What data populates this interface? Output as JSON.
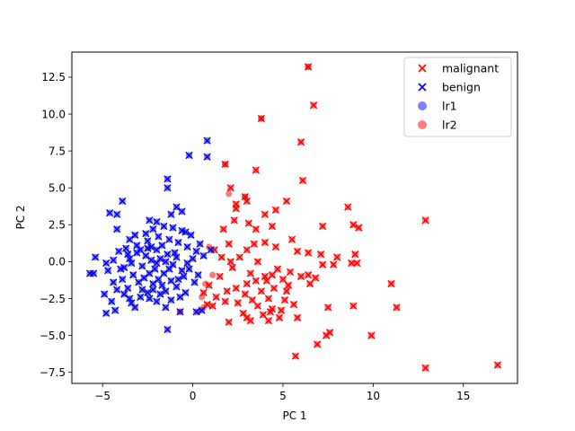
{
  "chart_data": {
    "type": "scatter",
    "title": "",
    "xlabel": "PC 1",
    "ylabel": "PC 2",
    "xlim": [
      -6.7,
      18.0
    ],
    "ylim": [
      -8.25,
      14.2
    ],
    "xticks": [
      -5,
      0,
      5,
      10,
      15
    ],
    "yticks": [
      -7.5,
      -5.0,
      -2.5,
      0.0,
      2.5,
      5.0,
      7.5,
      10.0,
      12.5
    ],
    "grid": false,
    "legend_position": "top-right",
    "legend": [
      {
        "label": "malignant",
        "marker": "x",
        "color": "#ff0000",
        "alpha": 1.0
      },
      {
        "label": "benign",
        "marker": "x",
        "color": "#0000ff",
        "alpha": 1.0
      },
      {
        "label": "lr1",
        "marker": "circle",
        "color": "#0000ff",
        "alpha": 0.5
      },
      {
        "label": "lr2",
        "marker": "circle",
        "color": "#ff0000",
        "alpha": 0.5
      }
    ],
    "series": [
      {
        "name": "malignant",
        "color": "#ff0000",
        "marker": "x",
        "points": [
          [
            6.4,
            13.2
          ],
          [
            3.8,
            9.7
          ],
          [
            6.7,
            10.6
          ],
          [
            6.0,
            8.1
          ],
          [
            1.8,
            6.6
          ],
          [
            3.5,
            6.2
          ],
          [
            6.1,
            5.5
          ],
          [
            2.1,
            5.0
          ],
          [
            2.9,
            4.4
          ],
          [
            5.2,
            4.1
          ],
          [
            8.6,
            3.7
          ],
          [
            4.6,
            3.5
          ],
          [
            2.4,
            3.6
          ],
          [
            4.0,
            3.2
          ],
          [
            12.9,
            2.8
          ],
          [
            8.9,
            2.5
          ],
          [
            7.2,
            2.4
          ],
          [
            9.2,
            2.3
          ],
          [
            1.7,
            2.2
          ],
          [
            3.5,
            2.2
          ],
          [
            5.5,
            1.5
          ],
          [
            5.8,
            0.7
          ],
          [
            6.4,
            0.6
          ],
          [
            7.1,
            0.5
          ],
          [
            8.0,
            0.3
          ],
          [
            9.0,
            0.5
          ],
          [
            7.2,
            -0.2
          ],
          [
            8.8,
            -0.1
          ],
          [
            9.1,
            -0.1
          ],
          [
            7.8,
            -0.2
          ],
          [
            6.4,
            -0.9
          ],
          [
            6.8,
            -1.1
          ],
          [
            6.5,
            -1.5
          ],
          [
            11.0,
            -1.5
          ],
          [
            11.3,
            -3.1
          ],
          [
            8.9,
            -3.0
          ],
          [
            7.5,
            -3.1
          ],
          [
            5.8,
            -3.8
          ],
          [
            4.4,
            -3.2
          ],
          [
            7.6,
            -4.8
          ],
          [
            7.4,
            -5.0
          ],
          [
            6.9,
            -5.6
          ],
          [
            9.9,
            -5.0
          ],
          [
            5.7,
            -6.4
          ],
          [
            12.9,
            -7.2
          ],
          [
            16.9,
            -7.0
          ],
          [
            3.0,
            -1.5
          ],
          [
            3.5,
            -1.3
          ],
          [
            4.0,
            -1.0
          ],
          [
            4.5,
            -1.8
          ],
          [
            5.0,
            -1.2
          ],
          [
            3.8,
            -2.0
          ],
          [
            4.2,
            -2.5
          ],
          [
            5.2,
            -2.0
          ],
          [
            3.2,
            -0.8
          ],
          [
            4.7,
            -0.5
          ],
          [
            2.5,
            -2.8
          ],
          [
            2.8,
            -3.5
          ],
          [
            3.6,
            -3.0
          ],
          [
            4.8,
            -3.8
          ],
          [
            2.0,
            -4.1
          ],
          [
            3.2,
            -4.0
          ],
          [
            4.2,
            -4.0
          ],
          [
            1.5,
            -1.0
          ],
          [
            2.2,
            -0.4
          ],
          [
            2.6,
            0.3
          ],
          [
            3.0,
            0.8
          ],
          [
            3.4,
            1.2
          ],
          [
            4.0,
            1.3
          ],
          [
            4.6,
            1.0
          ],
          [
            2.0,
            1.2
          ],
          [
            1.2,
            0.8
          ],
          [
            2.3,
            2.8
          ],
          [
            3.1,
            2.6
          ],
          [
            4.4,
            2.4
          ],
          [
            1.9,
            -2.0
          ],
          [
            1.3,
            -2.4
          ],
          [
            1.8,
            -2.7
          ],
          [
            2.4,
            -1.8
          ],
          [
            5.1,
            -2.6
          ],
          [
            4.9,
            -3.3
          ],
          [
            3.9,
            -3.6
          ],
          [
            0.9,
            -1.6
          ],
          [
            1.1,
            -3.0
          ],
          [
            0.6,
            -2.1
          ],
          [
            3.0,
            -3.8
          ],
          [
            4.1,
            -1.3
          ],
          [
            4.4,
            -0.9
          ],
          [
            5.4,
            -0.7
          ],
          [
            3.6,
            0.0
          ],
          [
            2.1,
            0.0
          ],
          [
            2.9,
            -2.2
          ],
          [
            5.3,
            -1.6
          ],
          [
            6.0,
            -1.0
          ],
          [
            5.6,
            -2.9
          ],
          [
            4.3,
            -3.4
          ],
          [
            3.3,
            -2.6
          ],
          [
            1.6,
            0.3
          ],
          [
            0.8,
            -2.9
          ],
          [
            2.4,
            3.9
          ],
          [
            3.0,
            4.1
          ]
        ]
      },
      {
        "name": "benign",
        "color": "#0000ff",
        "marker": "x",
        "points": [
          [
            0.8,
            8.2
          ],
          [
            0.8,
            7.1
          ],
          [
            -0.2,
            7.2
          ],
          [
            -1.4,
            5.6
          ],
          [
            -1.4,
            5.0
          ],
          [
            -0.9,
            3.7
          ],
          [
            -0.6,
            3.4
          ],
          [
            -1.2,
            3.2
          ],
          [
            -3.9,
            4.1
          ],
          [
            -4.6,
            3.3
          ],
          [
            -4.2,
            3.2
          ],
          [
            -0.6,
            2.1
          ],
          [
            -0.4,
            2.0
          ],
          [
            -2.4,
            2.8
          ],
          [
            -2.0,
            2.7
          ],
          [
            -4.2,
            2.2
          ],
          [
            -3.5,
            1.5
          ],
          [
            -3.1,
            1.1
          ],
          [
            -2.5,
            1.4
          ],
          [
            -1.9,
            1.7
          ],
          [
            -1.3,
            1.5
          ],
          [
            -0.8,
            1.3
          ],
          [
            -0.3,
            1.0
          ],
          [
            0.2,
            0.7
          ],
          [
            0.6,
            0.4
          ],
          [
            1.0,
            0.8
          ],
          [
            -5.4,
            0.3
          ],
          [
            -5.5,
            -0.8
          ],
          [
            -5.7,
            -0.8
          ],
          [
            -4.8,
            -0.1
          ],
          [
            -4.7,
            -0.6
          ],
          [
            -4.4,
            -1.4
          ],
          [
            -4.9,
            -2.2
          ],
          [
            -4.5,
            -2.7
          ],
          [
            -4.8,
            -3.5
          ],
          [
            -4.3,
            -3.3
          ],
          [
            -3.8,
            -2.2
          ],
          [
            -3.4,
            -2.8
          ],
          [
            -3.2,
            -3.1
          ],
          [
            -2.9,
            -2.4
          ],
          [
            -2.5,
            -2.1
          ],
          [
            -2.2,
            -1.5
          ],
          [
            -2.0,
            -2.7
          ],
          [
            -1.5,
            -3.1
          ],
          [
            -1.2,
            -2.6
          ],
          [
            -0.7,
            -2.4
          ],
          [
            -0.4,
            -2.1
          ],
          [
            0.1,
            -1.4
          ],
          [
            -1.4,
            -4.6
          ],
          [
            -0.7,
            -3.4
          ],
          [
            0.2,
            -3.4
          ],
          [
            0.5,
            -3.3
          ],
          [
            -3.8,
            -0.4
          ],
          [
            -3.5,
            0.2
          ],
          [
            -3.1,
            0.6
          ],
          [
            -2.8,
            -0.3
          ],
          [
            -2.6,
            0.4
          ],
          [
            -2.3,
            0.1
          ],
          [
            -2.1,
            -0.5
          ],
          [
            -1.8,
            0.2
          ],
          [
            -1.6,
            -0.8
          ],
          [
            -1.4,
            0.5
          ],
          [
            -1.1,
            -0.2
          ],
          [
            -0.9,
            0.3
          ],
          [
            -0.6,
            -0.6
          ],
          [
            -0.3,
            -0.1
          ],
          [
            0.0,
            0.2
          ],
          [
            -3.9,
            -1.2
          ],
          [
            -3.6,
            -1.8
          ],
          [
            -3.3,
            -0.9
          ],
          [
            -3.0,
            -1.4
          ],
          [
            -2.7,
            -1.1
          ],
          [
            -2.4,
            -0.8
          ],
          [
            -2.2,
            -1.9
          ],
          [
            -1.9,
            -1.2
          ],
          [
            -1.7,
            -1.6
          ],
          [
            -1.5,
            -2.0
          ],
          [
            -1.2,
            -1.3
          ],
          [
            -0.9,
            -1.7
          ],
          [
            -0.5,
            -1.0
          ],
          [
            -4.1,
            0.7
          ],
          [
            -4.0,
            -0.5
          ],
          [
            -3.7,
            0.9
          ],
          [
            -3.4,
            -0.1
          ],
          [
            -3.2,
            1.8
          ],
          [
            -2.9,
            0.8
          ],
          [
            -2.6,
            1.9
          ],
          [
            -2.3,
            1.0
          ],
          [
            -2.0,
            0.8
          ],
          [
            -1.7,
            1.1
          ],
          [
            -1.5,
            0.0
          ],
          [
            -1.3,
            -0.5
          ],
          [
            -1.0,
            0.6
          ],
          [
            -0.8,
            -1.2
          ],
          [
            -0.2,
            -0.5
          ],
          [
            0.3,
            -0.9
          ],
          [
            -2.8,
            -1.9
          ],
          [
            -3.5,
            -2.5
          ],
          [
            -4.2,
            -1.9
          ],
          [
            -2.4,
            -2.5
          ],
          [
            -1.8,
            -2.2
          ],
          [
            -2.0,
            -0.1
          ],
          [
            -2.5,
            0.9
          ],
          [
            -1.1,
            2.3
          ],
          [
            -1.6,
            2.4
          ],
          [
            -3.6,
            0.5
          ],
          [
            -4.4,
            0.1
          ],
          [
            -2.2,
            2.2
          ],
          [
            0.4,
            1.2
          ],
          [
            -0.1,
            1.8
          ]
        ]
      }
    ],
    "overlap_points": [
      [
        6.4,
        13.2
      ],
      [
        3.8,
        9.7
      ],
      [
        1.8,
        6.6
      ],
      [
        2.9,
        4.4
      ],
      [
        0.9,
        1.0
      ],
      [
        0.5,
        -2.4
      ],
      [
        0.6,
        -3.1
      ],
      [
        1.1,
        -0.9
      ],
      [
        2.0,
        4.6
      ],
      [
        0.7,
        -1.5
      ],
      [
        -0.7,
        -3.4
      ],
      [
        0.3,
        -3.4
      ]
    ]
  }
}
